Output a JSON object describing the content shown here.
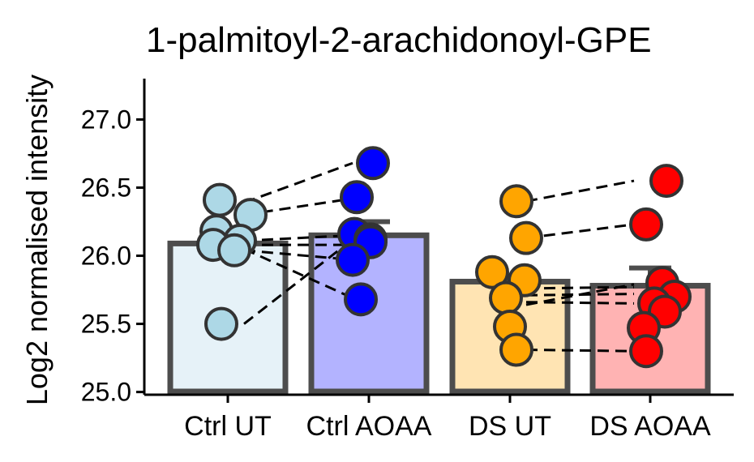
{
  "chart_data": {
    "type": "bar",
    "title": "1-palmitoyl-2-arachidonoyl-GPE",
    "xlabel": "",
    "ylabel": "Log2 normalised intensity",
    "ylim": [
      24.98,
      27.3
    ],
    "yticks": [
      "25.0",
      "25.5",
      "26.0",
      "26.5",
      "27.0"
    ],
    "categories": [
      "Ctrl UT",
      "Ctrl AOAA",
      "DS UT",
      "DS AOAA"
    ],
    "values": [
      26.09,
      26.15,
      25.81,
      25.78
    ],
    "errors": [
      0.0,
      0.1,
      0.0,
      0.13
    ],
    "colors": {
      "fills": [
        "#e6f2f8",
        "#b3b3ff",
        "#ffe4b3",
        "#ffb3b3"
      ],
      "points": [
        "#add8e6",
        "#0000ff",
        "#ffa500",
        "#ff0000"
      ],
      "outline": "#4d4d4d"
    },
    "points": [
      [
        26.41,
        26.3,
        26.18,
        26.11,
        26.08,
        26.04,
        25.5
      ],
      [
        26.68,
        26.43,
        26.16,
        26.12,
        26.1,
        25.97,
        25.68
      ],
      [
        26.4,
        26.13,
        25.88,
        25.82,
        25.69,
        25.48,
        25.31
      ],
      [
        26.55,
        26.23,
        25.8,
        25.7,
        25.65,
        25.59,
        25.47,
        25.3
      ]
    ],
    "pairs": [
      {
        "from": [
          0,
          26.39
        ],
        "to": [
          1,
          26.68
        ]
      },
      {
        "from": [
          0,
          26.3
        ],
        "to": [
          1,
          26.42
        ]
      },
      {
        "from": [
          0,
          26.11
        ],
        "to": [
          1,
          26.15
        ]
      },
      {
        "from": [
          0,
          26.08
        ],
        "to": [
          1,
          26.08
        ]
      },
      {
        "from": [
          0,
          26.04
        ],
        "to": [
          1,
          25.97
        ]
      },
      {
        "from": [
          0,
          26.05
        ],
        "to": [
          1,
          25.69
        ]
      },
      {
        "from": [
          0,
          25.5
        ],
        "to": [
          1,
          26.12
        ]
      },
      {
        "from": [
          2,
          26.4
        ],
        "to": [
          3,
          26.55
        ]
      },
      {
        "from": [
          2,
          26.13
        ],
        "to": [
          3,
          26.23
        ]
      },
      {
        "from": [
          2,
          25.76
        ],
        "to": [
          3,
          25.77
        ]
      },
      {
        "from": [
          2,
          25.71
        ],
        "to": [
          3,
          25.72
        ]
      },
      {
        "from": [
          2,
          25.66
        ],
        "to": [
          3,
          25.65
        ]
      },
      {
        "from": [
          2,
          25.64
        ],
        "to": [
          3,
          25.79
        ]
      },
      {
        "from": [
          2,
          25.31
        ],
        "to": [
          3,
          25.3
        ]
      }
    ]
  }
}
